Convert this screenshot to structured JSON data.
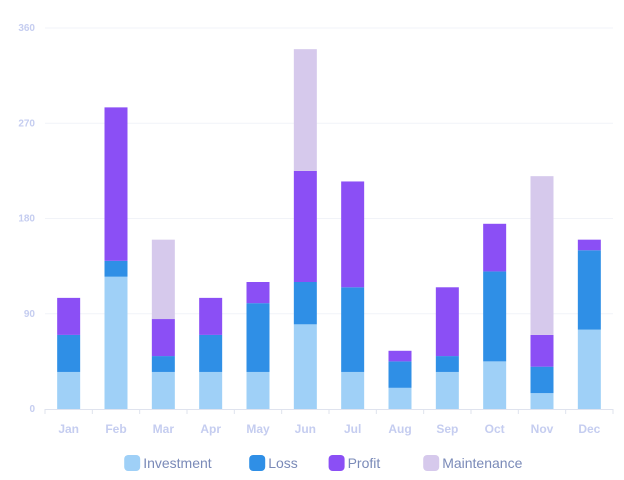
{
  "chart_data": {
    "type": "bar",
    "stacked": true,
    "categories": [
      "Jan",
      "Feb",
      "Mar",
      "Apr",
      "May",
      "Jun",
      "Jul",
      "Aug",
      "Sep",
      "Oct",
      "Nov",
      "Dec"
    ],
    "series": [
      {
        "name": "Investment",
        "color": "#9fd0f7",
        "values": [
          35,
          125,
          35,
          35,
          35,
          80,
          35,
          20,
          35,
          45,
          15,
          75
        ]
      },
      {
        "name": "Loss",
        "color": "#2f8fe6",
        "values": [
          35,
          15,
          15,
          35,
          65,
          40,
          80,
          25,
          15,
          85,
          25,
          75
        ]
      },
      {
        "name": "Profit",
        "color": "#8b4ff5",
        "values": [
          35,
          145,
          35,
          35,
          20,
          105,
          100,
          10,
          65,
          45,
          30,
          10
        ]
      },
      {
        "name": "Maintenance",
        "color": "#d6c9ec",
        "values": [
          0,
          0,
          75,
          0,
          0,
          115,
          0,
          0,
          0,
          0,
          150,
          0
        ]
      }
    ],
    "yticks": [
      0,
      90,
      180,
      270,
      360
    ],
    "ylim": [
      0,
      360
    ],
    "legend_position": "bottom",
    "grid": true
  }
}
